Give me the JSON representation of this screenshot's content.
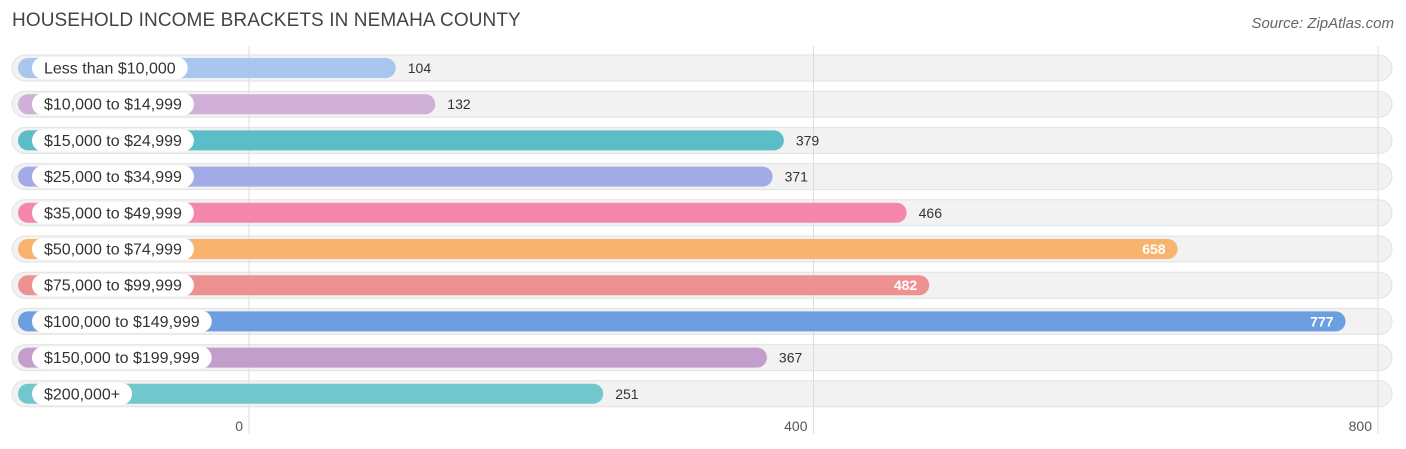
{
  "title": "HOUSEHOLD INCOME BRACKETS IN NEMAHA COUNTY",
  "source": "Source: ZipAtlas.com",
  "chart_data": {
    "type": "bar",
    "orientation": "horizontal",
    "title": "HOUSEHOLD INCOME BRACKETS IN NEMAHA COUNTY",
    "categories": [
      "Less than $10,000",
      "$10,000 to $14,999",
      "$15,000 to $24,999",
      "$25,000 to $34,999",
      "$35,000 to $49,999",
      "$50,000 to $74,999",
      "$75,000 to $99,999",
      "$100,000 to $149,999",
      "$150,000 to $199,999",
      "$200,000+"
    ],
    "values": [
      104,
      132,
      379,
      371,
      466,
      658,
      482,
      777,
      367,
      251
    ],
    "colors": [
      "#a9c7ee",
      "#d0b0d6",
      "#5bbdc8",
      "#a3abe6",
      "#f587ab",
      "#f8b46e",
      "#ee9291",
      "#6b9fe0",
      "#c39ecb",
      "#72c7cc"
    ],
    "xticks": [
      0,
      400,
      800
    ],
    "xlim": [
      0,
      800
    ],
    "grid": true
  }
}
